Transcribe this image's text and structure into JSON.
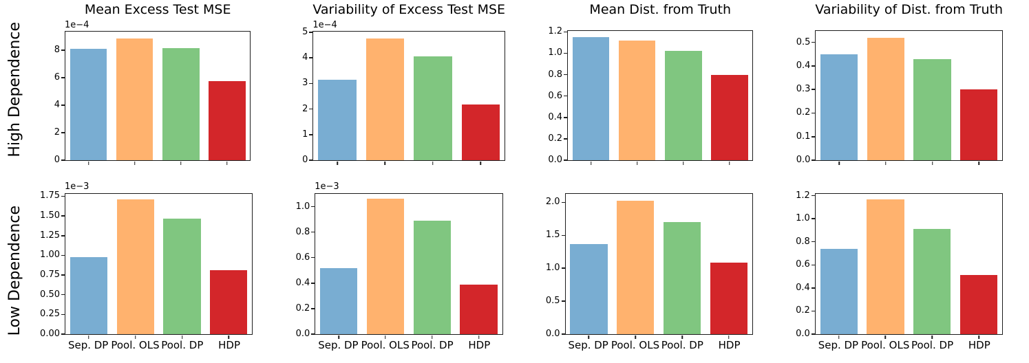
{
  "figure": {
    "row_labels": [
      "High Dependence",
      "Low Dependence"
    ],
    "categories": [
      "Sep. DP",
      "Pool. OLS",
      "Pool. DP",
      "HDP"
    ],
    "bar_colors": [
      "#79add2",
      "#ffb26e",
      "#80c680",
      "#d3262a"
    ],
    "spine_color": "#1c1c1c",
    "background_color": "#ffffff"
  },
  "chart_data": [
    {
      "type": "bar",
      "row": "High Dependence",
      "title": "Mean Excess Test MSE",
      "offset_text": "1e−4",
      "categories": [
        "Sep. DP",
        "Pool. OLS",
        "Pool. DP",
        "HDP"
      ],
      "values": [
        8.1,
        8.85,
        8.15,
        5.75
      ],
      "value_scale": "1e-4",
      "yticks": [
        "0",
        "2",
        "4",
        "6",
        "8"
      ],
      "ytick_values": [
        0,
        2,
        4,
        6,
        8
      ],
      "ylim": [
        0,
        9.35
      ],
      "show_xticklabels": false,
      "grid": false,
      "legend": false
    },
    {
      "type": "bar",
      "row": "High Dependence",
      "title": "Variability of Excess Test MSE",
      "offset_text": "1e−4",
      "categories": [
        "Sep. DP",
        "Pool. OLS",
        "Pool. DP",
        "HDP"
      ],
      "values": [
        3.15,
        4.75,
        4.05,
        2.18
      ],
      "value_scale": "1e-4",
      "yticks": [
        "0",
        "1",
        "2",
        "3",
        "4",
        "5"
      ],
      "ytick_values": [
        0,
        1,
        2,
        3,
        4,
        5
      ],
      "ylim": [
        0,
        5.02
      ],
      "show_xticklabels": false,
      "grid": false,
      "legend": false
    },
    {
      "type": "bar",
      "row": "High Dependence",
      "title": "Mean Dist. from Truth",
      "offset_text": "",
      "categories": [
        "Sep. DP",
        "Pool. OLS",
        "Pool. DP",
        "HDP"
      ],
      "values": [
        1.15,
        1.12,
        1.02,
        0.8
      ],
      "value_scale": "1",
      "yticks": [
        "0.0",
        "0.2",
        "0.4",
        "0.6",
        "0.8",
        "1.0",
        "1.2"
      ],
      "ytick_values": [
        0,
        0.2,
        0.4,
        0.6,
        0.8,
        1.0,
        1.2
      ],
      "ylim": [
        0,
        1.21
      ],
      "show_xticklabels": false,
      "grid": false,
      "legend": false
    },
    {
      "type": "bar",
      "row": "High Dependence",
      "title": "Variability of Dist. from Truth",
      "offset_text": "",
      "categories": [
        "Sep. DP",
        "Pool. OLS",
        "Pool. DP",
        "HDP"
      ],
      "values": [
        0.45,
        0.52,
        0.43,
        0.3
      ],
      "value_scale": "1",
      "yticks": [
        "0.0",
        "0.1",
        "0.2",
        "0.3",
        "0.4",
        "0.5"
      ],
      "ytick_values": [
        0,
        0.1,
        0.2,
        0.3,
        0.4,
        0.5
      ],
      "ylim": [
        0,
        0.549
      ],
      "show_xticklabels": false,
      "grid": false,
      "legend": false
    },
    {
      "type": "bar",
      "row": "Low Dependence",
      "title": "",
      "offset_text": "1e−3",
      "categories": [
        "Sep. DP",
        "Pool. OLS",
        "Pool. DP",
        "HDP"
      ],
      "values": [
        0.98,
        1.71,
        1.47,
        0.81
      ],
      "value_scale": "1e-3",
      "yticks": [
        "0.00",
        "0.25",
        "0.50",
        "0.75",
        "1.00",
        "1.25",
        "1.50",
        "1.75"
      ],
      "ytick_values": [
        0,
        0.25,
        0.5,
        0.75,
        1.0,
        1.25,
        1.5,
        1.75
      ],
      "ylim": [
        0,
        1.78
      ],
      "show_xticklabels": true,
      "grid": false,
      "legend": false
    },
    {
      "type": "bar",
      "row": "Low Dependence",
      "title": "",
      "offset_text": "1e−3",
      "categories": [
        "Sep. DP",
        "Pool. OLS",
        "Pool. DP",
        "HDP"
      ],
      "values": [
        0.52,
        1.06,
        0.89,
        0.39
      ],
      "value_scale": "1e-3",
      "yticks": [
        "0.0",
        "0.2",
        "0.4",
        "0.6",
        "0.8",
        "1.0"
      ],
      "ytick_values": [
        0,
        0.2,
        0.4,
        0.6,
        0.8,
        1.0
      ],
      "ylim": [
        0,
        1.1
      ],
      "show_xticklabels": true,
      "grid": false,
      "legend": false
    },
    {
      "type": "bar",
      "row": "Low Dependence",
      "title": "",
      "offset_text": "",
      "categories": [
        "Sep. DP",
        "Pool. OLS",
        "Pool. DP",
        "HDP"
      ],
      "values": [
        1.37,
        2.03,
        1.7,
        1.09
      ],
      "value_scale": "1",
      "yticks": [
        "0.0",
        "0.5",
        "1.0",
        "1.5",
        "2.0"
      ],
      "ytick_values": [
        0,
        0.5,
        1.0,
        1.5,
        2.0
      ],
      "ylim": [
        0,
        2.13
      ],
      "show_xticklabels": true,
      "grid": false,
      "legend": false
    },
    {
      "type": "bar",
      "row": "Low Dependence",
      "title": "",
      "offset_text": "",
      "categories": [
        "Sep. DP",
        "Pool. OLS",
        "Pool. DP",
        "HDP"
      ],
      "values": [
        0.74,
        1.17,
        0.91,
        0.51
      ],
      "value_scale": "1",
      "yticks": [
        "0.0",
        "0.2",
        "0.4",
        "0.6",
        "0.8",
        "1.0",
        "1.2"
      ],
      "ytick_values": [
        0,
        0.2,
        0.4,
        0.6,
        0.8,
        1.0,
        1.2
      ],
      "ylim": [
        0,
        1.215
      ],
      "show_xticklabels": true,
      "grid": false,
      "legend": false
    }
  ]
}
